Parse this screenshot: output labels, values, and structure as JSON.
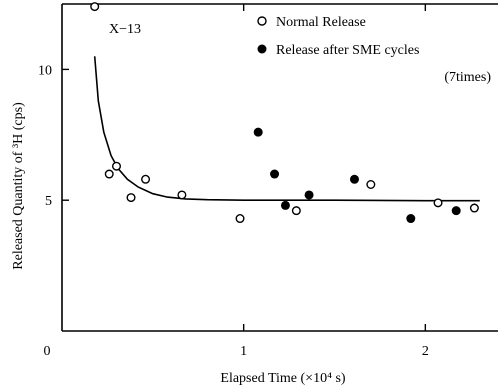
{
  "chart_data": {
    "type": "scatter",
    "title": "",
    "panel_label": "X−13",
    "xlabel": "Elapsed Time (×10⁴ s)",
    "ylabel": "Released Quantity of ³H (cps)",
    "origin_label": "0",
    "xlim": [
      0,
      2.4
    ],
    "ylim": [
      0,
      12.5
    ],
    "x_ticks": [
      {
        "value": 1,
        "label": "1"
      },
      {
        "value": 2,
        "label": "2"
      }
    ],
    "y_ticks": [
      {
        "value": 5,
        "label": "5"
      },
      {
        "value": 10,
        "label": "10"
      }
    ],
    "grid": false,
    "legend_position": "top-right",
    "series": [
      {
        "name": "Normal Release",
        "marker": "open-circle",
        "points": [
          {
            "x": 0.18,
            "y": 12.4
          },
          {
            "x": 0.26,
            "y": 6.0
          },
          {
            "x": 0.3,
            "y": 6.3
          },
          {
            "x": 0.38,
            "y": 5.1
          },
          {
            "x": 0.46,
            "y": 5.8
          },
          {
            "x": 0.66,
            "y": 5.2
          },
          {
            "x": 0.98,
            "y": 4.3
          },
          {
            "x": 1.29,
            "y": 4.6
          },
          {
            "x": 1.7,
            "y": 5.6
          },
          {
            "x": 2.07,
            "y": 4.9
          },
          {
            "x": 2.27,
            "y": 4.7
          }
        ]
      },
      {
        "name": "Release after SME cycles",
        "name_line2": "(7times)",
        "marker": "filled-circle",
        "points": [
          {
            "x": 1.08,
            "y": 7.6
          },
          {
            "x": 1.17,
            "y": 6.0
          },
          {
            "x": 1.23,
            "y": 4.8
          },
          {
            "x": 1.36,
            "y": 5.2
          },
          {
            "x": 1.61,
            "y": 5.8
          },
          {
            "x": 1.92,
            "y": 4.3
          },
          {
            "x": 2.17,
            "y": 4.6
          }
        ]
      }
    ],
    "fit_curve": {
      "description": "decay to plateau",
      "points": [
        [
          0.18,
          10.5
        ],
        [
          0.2,
          8.8
        ],
        [
          0.23,
          7.6
        ],
        [
          0.27,
          6.7
        ],
        [
          0.31,
          6.2
        ],
        [
          0.36,
          5.8
        ],
        [
          0.42,
          5.5
        ],
        [
          0.5,
          5.25
        ],
        [
          0.58,
          5.12
        ],
        [
          0.68,
          5.05
        ],
        [
          0.8,
          5.02
        ],
        [
          1.0,
          5.0
        ],
        [
          1.5,
          5.0
        ],
        [
          2.0,
          4.98
        ],
        [
          2.3,
          4.98
        ]
      ]
    }
  }
}
